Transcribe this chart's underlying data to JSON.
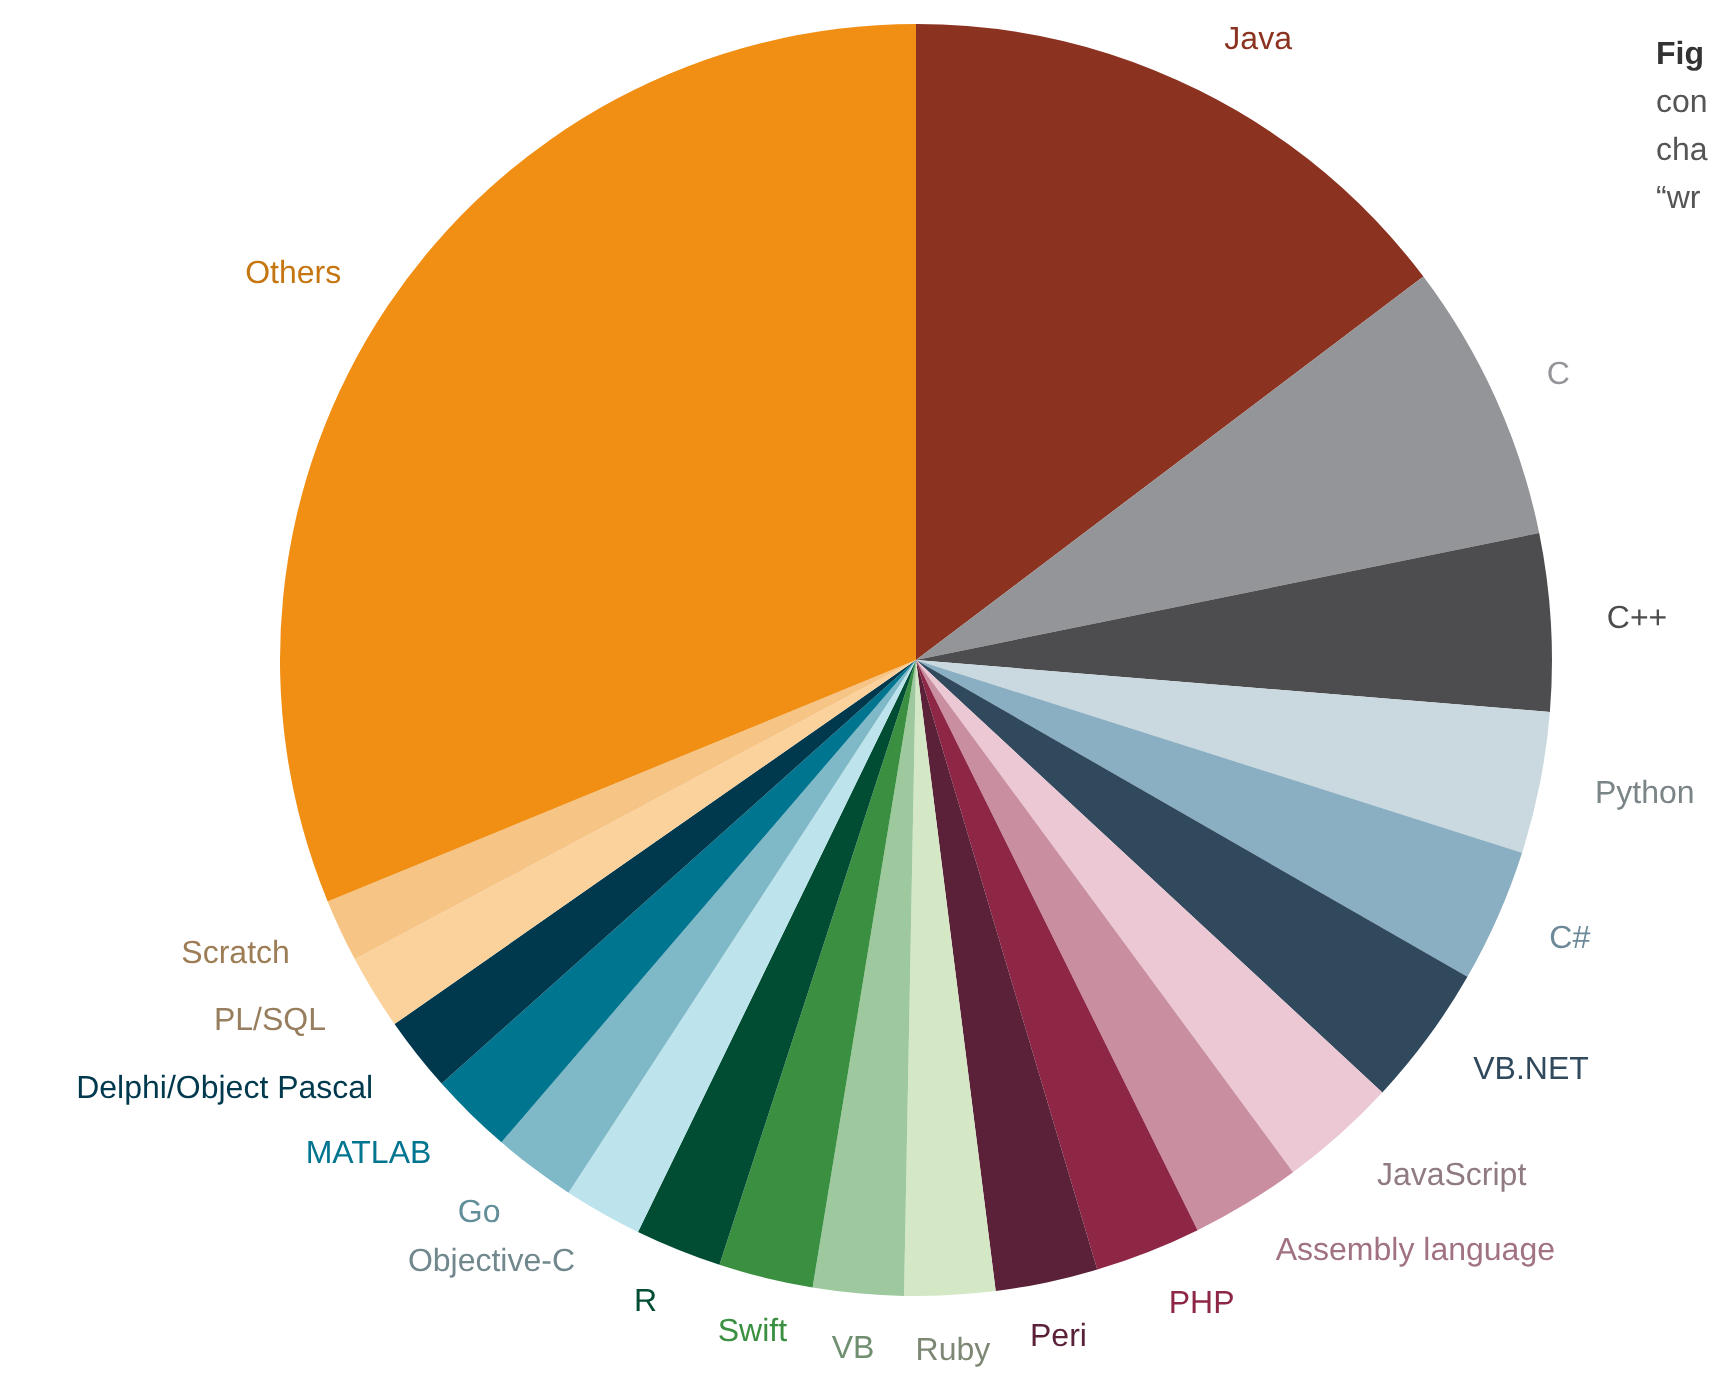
{
  "chart_data": {
    "type": "pie",
    "categories": [
      "Java",
      "C",
      "C++",
      "Python",
      "C#",
      "VB.NET",
      "JavaScript",
      "Assembly language",
      "PHP",
      "Peri",
      "Ruby",
      "VB",
      "Swift",
      "R",
      "Objective-C",
      "Go",
      "MATLAB",
      "Delphi/Object Pascal",
      "PL/SQL",
      "Scratch",
      "Others"
    ],
    "values": [
      14.7,
      7.1,
      4.5,
      3.6,
      3.4,
      3.6,
      3.0,
      2.8,
      2.7,
      2.6,
      2.3,
      2.3,
      2.4,
      2.2,
      2.0,
      2.1,
      2.1,
      1.9,
      1.9,
      1.6,
      31.2
    ],
    "colors": [
      "#8b3320",
      "#939598",
      "#4d4d4f",
      "#c9d9df",
      "#8bafc2",
      "#30495c",
      "#ebc8d3",
      "#c98fa0",
      "#8e2646",
      "#5a2139",
      "#d5e8c6",
      "#9ec89e",
      "#3a9040",
      "#004d33",
      "#bde4ec",
      "#7fb8c7",
      "#007590",
      "#00394d",
      "#fbd19c",
      "#f6c485",
      "#f08f14"
    ],
    "legend": false,
    "annotations": [
      "Fig",
      "con",
      "cha",
      "“wr"
    ]
  }
}
